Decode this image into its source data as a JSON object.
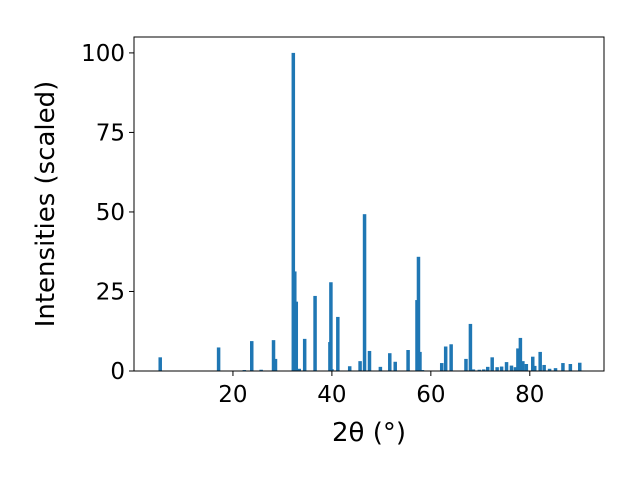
{
  "chart_data": {
    "type": "bar",
    "xlabel": "2θ (°)",
    "ylabel": "Intensities (scaled)",
    "xlim": [
      0,
      95
    ],
    "ylim": [
      0,
      105
    ],
    "xticks": [
      20,
      40,
      60,
      80
    ],
    "yticks": [
      0,
      25,
      50,
      75,
      100
    ],
    "bar_color": "#1f77b4",
    "grid": false,
    "legend": "none",
    "x": [
      5.3,
      17.1,
      22.3,
      23.8,
      25.7,
      28.2,
      28.6,
      32.2,
      32.5,
      32.8,
      33.4,
      34.5,
      36.6,
      39.6,
      39.8,
      40.0,
      41.2,
      43.6,
      45.7,
      46.6,
      47.6,
      49.8,
      51.7,
      52.8,
      55.4,
      57.2,
      57.5,
      57.8,
      58.3,
      62.2,
      63.0,
      64.1,
      67.1,
      68.0,
      68.6,
      69.8,
      70.7,
      71.5,
      72.4,
      73.4,
      74.3,
      75.3,
      76.3,
      77.1,
      77.6,
      78.1,
      78.6,
      79.3,
      80.6,
      81.0,
      82.1,
      82.9,
      84.0,
      85.2,
      86.7,
      88.2,
      90.1
    ],
    "values": [
      4.3,
      7.4,
      0.3,
      9.4,
      0.4,
      9.7,
      3.8,
      100,
      31.3,
      21.8,
      0.7,
      10.1,
      23.6,
      9.1,
      27.9,
      0.6,
      17.0,
      1.5,
      3.1,
      49.3,
      6.3,
      1.3,
      5.6,
      2.9,
      6.6,
      22.3,
      35.9,
      6.0,
      0.3,
      2.5,
      7.7,
      8.4,
      3.8,
      14.8,
      0.5,
      0.4,
      0.5,
      1.3,
      4.3,
      1.2,
      1.4,
      2.8,
      1.7,
      1.2,
      7.1,
      10.4,
      3.1,
      2.2,
      4.5,
      1.6,
      6.0,
      1.9,
      0.7,
      0.9,
      2.5,
      2.2,
      2.6
    ]
  }
}
